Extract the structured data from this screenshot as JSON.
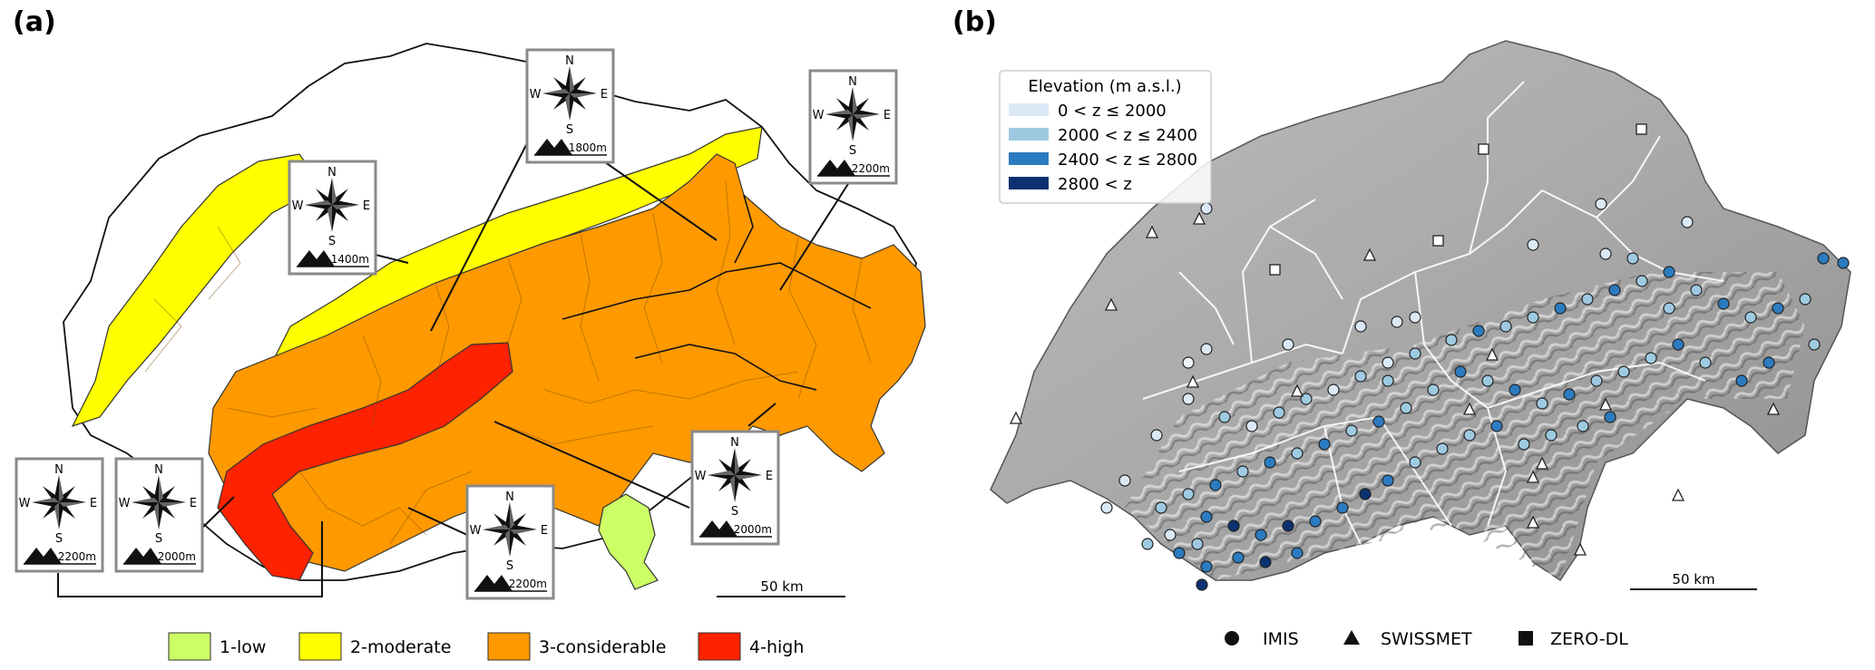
{
  "panel_a": {
    "label": "(a)",
    "scalebar": "50 km",
    "compasses": [
      {
        "n": "N",
        "e": "E",
        "s": "S",
        "w": "W",
        "elev": "1800m"
      },
      {
        "n": "N",
        "e": "E",
        "s": "S",
        "w": "W",
        "elev": "2200m"
      },
      {
        "n": "N",
        "e": "E",
        "s": "S",
        "w": "W",
        "elev": "1400m"
      },
      {
        "n": "N",
        "e": "E",
        "s": "S",
        "w": "W",
        "elev": "2000m"
      },
      {
        "n": "N",
        "e": "E",
        "s": "S",
        "w": "W",
        "elev": "2200m"
      },
      {
        "n": "N",
        "e": "E",
        "s": "S",
        "w": "W",
        "elev": "2000m"
      },
      {
        "n": "N",
        "e": "E",
        "s": "S",
        "w": "W",
        "elev": "2200m"
      }
    ],
    "legend": [
      {
        "label": "1-low",
        "color": "#ccff66"
      },
      {
        "label": "2-moderate",
        "color": "#ffff00"
      },
      {
        "label": "3-considerable",
        "color": "#ff9900"
      },
      {
        "label": "4-high",
        "color": "#ff2200"
      }
    ]
  },
  "panel_b": {
    "label": "(b)",
    "scalebar": "50 km",
    "elevation_legend": {
      "title": "Elevation (m a.s.l.)",
      "items": [
        {
          "label": "0 < z ≤ 2000",
          "color": "#dbe9f6"
        },
        {
          "label": "2000 < z ≤ 2400",
          "color": "#9ecae1"
        },
        {
          "label": "2400 < z ≤ 2800",
          "color": "#2c7bc0"
        },
        {
          "label": "2800 < z",
          "color": "#0b3170"
        }
      ]
    },
    "station_legend": [
      {
        "label": "IMIS",
        "symbol": "circle"
      },
      {
        "label": "SWISSMET",
        "symbol": "triangle"
      },
      {
        "label": "ZERO-DL",
        "symbol": "square"
      }
    ]
  }
}
